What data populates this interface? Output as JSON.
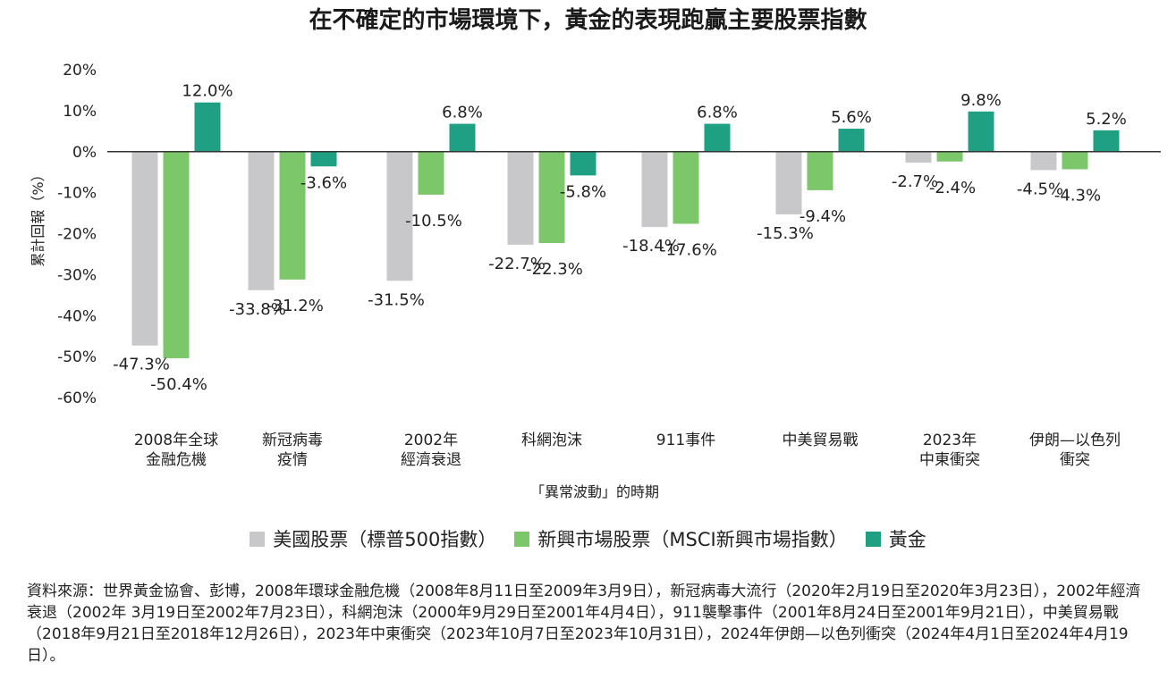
{
  "chart_data": {
    "type": "bar",
    "title": "在不確定的市場環境下，黃金的表現跑贏主要股票指數",
    "ylabel": "累計回報（%）",
    "xlabel": "「異常波動」的時期",
    "ylim": [
      -60,
      20
    ],
    "yticks": [
      20,
      10,
      0,
      -10,
      -20,
      -30,
      -40,
      -50,
      -60
    ],
    "ytick_labels": [
      "20%",
      "10%",
      "0%",
      "-10%",
      "-20%",
      "-30%",
      "-40%",
      "-50%",
      "-60%"
    ],
    "grid": false,
    "legend_position": "bottom",
    "categories": [
      [
        "2008年全球",
        "金融危機"
      ],
      [
        "新冠病毒",
        "疫情"
      ],
      [
        "2002年",
        "經濟衰退"
      ],
      [
        "科網泡沫"
      ],
      [
        "911事件"
      ],
      [
        "中美貿易戰"
      ],
      [
        "2023年",
        "中東衝突"
      ],
      [
        "伊朗—以色列",
        "衝突"
      ]
    ],
    "series": [
      {
        "name": "美國股票（標普500指數）",
        "color": "#c8c8ca",
        "values": [
          -47.3,
          -33.8,
          -31.5,
          -22.7,
          -18.4,
          -15.3,
          -2.7,
          -4.5
        ],
        "labels": [
          "-47.3%",
          "-33.8%",
          "-31.5%",
          "-22.7%",
          "-18.4%",
          "-15.3%",
          "-2.7%",
          "-4.5%"
        ]
      },
      {
        "name": "新興市場股票（MSCI新興市場指數）",
        "color": "#7cc76a",
        "values": [
          -50.4,
          -31.2,
          -10.5,
          -22.3,
          -17.6,
          -9.4,
          -2.4,
          -4.3
        ],
        "labels": [
          "-50.4%",
          "-31.2%",
          "-10.5%",
          "-22.3%",
          "-17.6%",
          "-9.4%",
          "-2.4%",
          "-4.3%"
        ]
      },
      {
        "name": "黃金",
        "color": "#1fa083",
        "values": [
          12.0,
          -3.6,
          6.8,
          -5.8,
          6.8,
          5.6,
          9.8,
          5.2
        ],
        "labels": [
          "12.0%",
          "-3.6%",
          "6.8%",
          "-5.8%",
          "6.8%",
          "5.6%",
          "9.8%",
          "5.2%"
        ]
      }
    ]
  },
  "source_note": "資料來源：世界黃金協會、彭博，2008年環球金融危機（2008年8月11日至2009年3月9日），新冠病毒大流行（2020年2月19日至2020年3月23日），2002年經濟衰退（2002年 3月19日至2002年7月23日），科網泡沫（2000年9月29日至2001年4月4日），911襲擊事件（2001年8月24日至2001年9月21日），中美貿易戰（2018年9月21日至2018年12月26日），2023年中東衝突（2023年10月7日至2023年10月31日），2024年伊朗—以色列衝突（2024年4月1日至2024年4月19日）。"
}
